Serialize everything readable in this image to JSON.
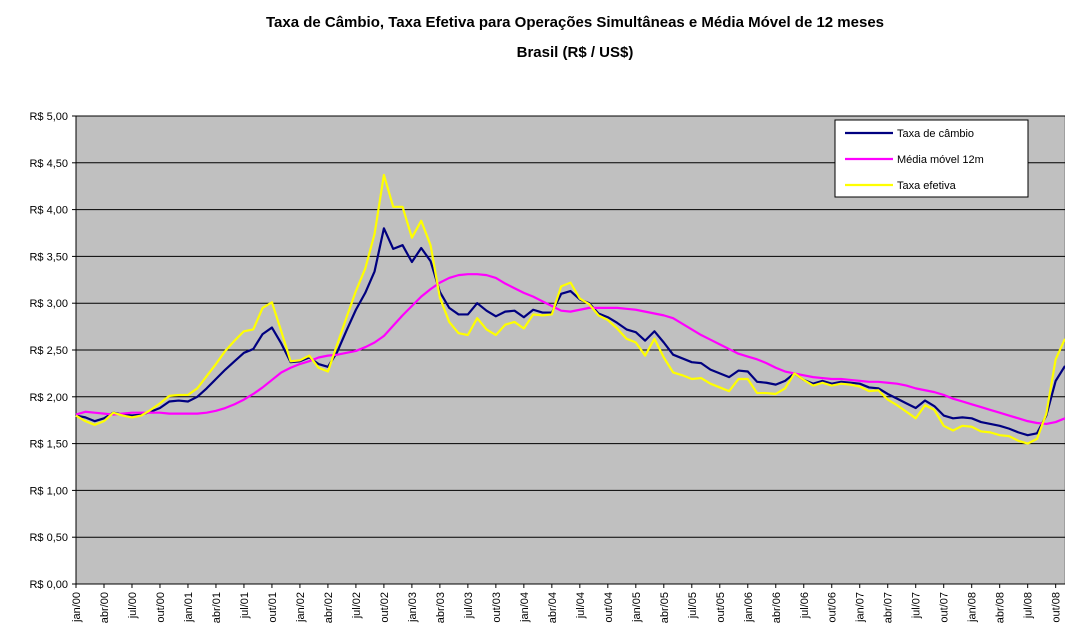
{
  "chart_data": {
    "type": "line",
    "title": "Taxa de Câmbio, Taxa Efetiva para Operações Simultâneas e Média Móvel de 12 meses",
    "subtitle": "Brasil (R$ / US$)",
    "categories": [
      "jan/00",
      null,
      null,
      "abr/00",
      null,
      null,
      "jul/00",
      null,
      null,
      "out/00",
      null,
      null,
      "jan/01",
      null,
      null,
      "abr/01",
      null,
      null,
      "jul/01",
      null,
      null,
      "out/01",
      null,
      null,
      "jan/02",
      null,
      null,
      "abr/02",
      null,
      null,
      "jul/02",
      null,
      null,
      "out/02",
      null,
      null,
      "jan/03",
      null,
      null,
      "abr/03",
      null,
      null,
      "jul/03",
      null,
      null,
      "out/03",
      null,
      null,
      "jan/04",
      null,
      null,
      "abr/04",
      null,
      null,
      "jul/04",
      null,
      null,
      "out/04",
      null,
      null,
      "jan/05",
      null,
      null,
      "abr/05",
      null,
      null,
      "jul/05",
      null,
      null,
      "out/05",
      null,
      null,
      "jan/06",
      null,
      null,
      "abr/06",
      null,
      null,
      "jul/06",
      null,
      null,
      "out/06",
      null,
      null,
      "jan/07",
      null,
      null,
      "abr/07",
      null,
      null,
      "jul/07",
      null,
      null,
      "out/07",
      null,
      null,
      "jan/08",
      null,
      null,
      "abr/08",
      null,
      null,
      "jul/08",
      null,
      null,
      "out/08",
      null
    ],
    "series": [
      {
        "name": "Taxa de câmbio",
        "color": "#000080",
        "values": [
          1.8,
          1.78,
          1.74,
          1.77,
          1.83,
          1.81,
          1.8,
          1.81,
          1.84,
          1.88,
          1.95,
          1.96,
          1.95,
          2.0,
          2.09,
          2.19,
          2.29,
          2.38,
          2.47,
          2.51,
          2.67,
          2.74,
          2.57,
          2.37,
          2.38,
          2.42,
          2.35,
          2.32,
          2.48,
          2.71,
          2.93,
          3.11,
          3.34,
          3.8,
          3.58,
          3.62,
          3.44,
          3.59,
          3.45,
          3.12,
          2.95,
          2.88,
          2.88,
          3.0,
          2.92,
          2.86,
          2.91,
          2.92,
          2.85,
          2.93,
          2.9,
          2.9,
          3.1,
          3.13,
          3.04,
          3.0,
          2.89,
          2.85,
          2.79,
          2.72,
          2.69,
          2.6,
          2.7,
          2.58,
          2.45,
          2.41,
          2.37,
          2.36,
          2.29,
          2.25,
          2.21,
          2.28,
          2.27,
          2.16,
          2.15,
          2.13,
          2.17,
          2.25,
          2.18,
          2.14,
          2.17,
          2.14,
          2.16,
          2.15,
          2.14,
          2.1,
          2.09,
          2.03,
          1.98,
          1.93,
          1.88,
          1.96,
          1.9,
          1.8,
          1.77,
          1.78,
          1.77,
          1.73,
          1.71,
          1.69,
          1.66,
          1.62,
          1.59,
          1.61,
          1.8,
          2.17,
          2.33
        ]
      },
      {
        "name": "Média móvel 12m",
        "color": "#ff00ff",
        "values": [
          1.81,
          1.84,
          1.83,
          1.82,
          1.81,
          1.82,
          1.83,
          1.83,
          1.83,
          1.83,
          1.82,
          1.82,
          1.82,
          1.82,
          1.83,
          1.85,
          1.88,
          1.92,
          1.97,
          2.03,
          2.1,
          2.18,
          2.26,
          2.31,
          2.35,
          2.38,
          2.42,
          2.44,
          2.45,
          2.47,
          2.49,
          2.53,
          2.58,
          2.65,
          2.76,
          2.87,
          2.97,
          3.07,
          3.15,
          3.22,
          3.27,
          3.3,
          3.31,
          3.31,
          3.3,
          3.27,
          3.21,
          3.16,
          3.11,
          3.07,
          3.02,
          2.97,
          2.92,
          2.91,
          2.93,
          2.95,
          2.95,
          2.95,
          2.95,
          2.94,
          2.93,
          2.91,
          2.89,
          2.87,
          2.84,
          2.78,
          2.72,
          2.66,
          2.61,
          2.56,
          2.51,
          2.46,
          2.43,
          2.4,
          2.36,
          2.31,
          2.27,
          2.25,
          2.23,
          2.21,
          2.2,
          2.19,
          2.19,
          2.18,
          2.17,
          2.16,
          2.16,
          2.15,
          2.14,
          2.12,
          2.09,
          2.07,
          2.05,
          2.02,
          1.98,
          1.95,
          1.92,
          1.89,
          1.86,
          1.83,
          1.8,
          1.77,
          1.74,
          1.72,
          1.71,
          1.73,
          1.77
        ]
      },
      {
        "name": "Taxa efetiva",
        "color": "#ffff00",
        "values": [
          1.8,
          1.74,
          1.7,
          1.74,
          1.83,
          1.8,
          1.78,
          1.8,
          1.86,
          1.93,
          2.01,
          2.02,
          2.02,
          2.09,
          2.22,
          2.35,
          2.49,
          2.6,
          2.7,
          2.72,
          2.95,
          3.01,
          2.7,
          2.38,
          2.39,
          2.44,
          2.31,
          2.27,
          2.56,
          2.85,
          3.13,
          3.37,
          3.74,
          4.37,
          4.03,
          4.03,
          3.7,
          3.88,
          3.62,
          3.06,
          2.8,
          2.68,
          2.66,
          2.84,
          2.72,
          2.66,
          2.77,
          2.8,
          2.73,
          2.88,
          2.87,
          2.88,
          3.18,
          3.22,
          3.05,
          2.99,
          2.87,
          2.82,
          2.73,
          2.62,
          2.58,
          2.44,
          2.62,
          2.42,
          2.26,
          2.23,
          2.19,
          2.2,
          2.14,
          2.1,
          2.06,
          2.19,
          2.19,
          2.04,
          2.04,
          2.03,
          2.09,
          2.25,
          2.18,
          2.12,
          2.15,
          2.12,
          2.14,
          2.13,
          2.11,
          2.06,
          2.07,
          1.97,
          1.91,
          1.84,
          1.77,
          1.91,
          1.86,
          1.69,
          1.64,
          1.69,
          1.68,
          1.63,
          1.62,
          1.59,
          1.58,
          1.53,
          1.5,
          1.55,
          1.82,
          2.4,
          2.62
        ]
      }
    ],
    "ylim": [
      0,
      5
    ],
    "yticks": [
      {
        "value": 0,
        "label": "R$ 0,00"
      },
      {
        "value": 0.5,
        "label": "R$ 0,50"
      },
      {
        "value": 1,
        "label": "R$ 1,00"
      },
      {
        "value": 1.5,
        "label": "R$ 1,50"
      },
      {
        "value": 2,
        "label": "R$ 2,00"
      },
      {
        "value": 2.5,
        "label": "R$ 2,50"
      },
      {
        "value": 3,
        "label": "R$ 3,00"
      },
      {
        "value": 3.5,
        "label": "R$ 3,50"
      },
      {
        "value": 4,
        "label": "R$ 4,00"
      },
      {
        "value": 4.5,
        "label": "R$ 4,50"
      },
      {
        "value": 5,
        "label": "R$ 5,00"
      }
    ],
    "grid": true,
    "legend_loc": "upper right",
    "background": "#c0c0c0"
  }
}
